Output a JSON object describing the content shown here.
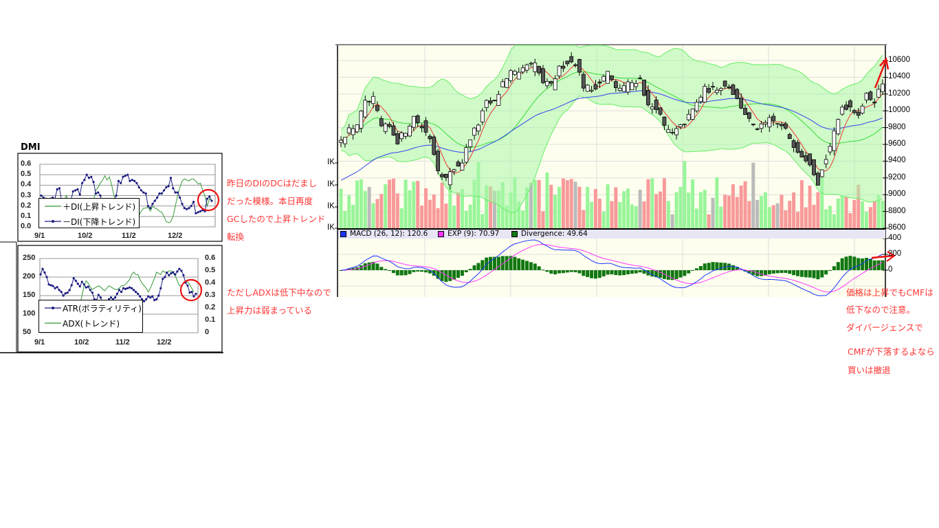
{
  "dmi_chart": {
    "title": "DMI",
    "y_ticks": [
      "0.6",
      "0.5",
      "0.4",
      "0.3",
      "0.2",
      "0.1",
      "0.0"
    ],
    "x_ticks": [
      "9/1",
      "10/2",
      "11/2",
      "12/2"
    ],
    "legend": [
      "＋DI(上昇トレンド)",
      "－DI(下降トレンド)"
    ],
    "series": [
      {
        "name": "＋DI(上昇トレンド)",
        "color": "#339933",
        "values": [
          0.3,
          0.28,
          0.25,
          0.2,
          0.18,
          0.15,
          0.12,
          0.1,
          0.15,
          0.2,
          0.25,
          0.3,
          0.25,
          0.2,
          0.15,
          0.12,
          0.1,
          0.08,
          0.1,
          0.12,
          0.15,
          0.18,
          0.2,
          0.25,
          0.35,
          0.38,
          0.42,
          0.45,
          0.49,
          0.45,
          0.48,
          0.4,
          0.3,
          0.25,
          0.2,
          0.15,
          0.12,
          0.1,
          0.12,
          0.15,
          0.14,
          0.13,
          0.12,
          0.11,
          0.15,
          0.18,
          0.18,
          0.19,
          0.15,
          0.2,
          0.18,
          0.17,
          0.15,
          0.14,
          0.1,
          0.05,
          0.04,
          0.05,
          0.1,
          0.2,
          0.3,
          0.38,
          0.44,
          0.46,
          0.45,
          0.44,
          0.46,
          0.46,
          0.44,
          0.41,
          0.42,
          0.35,
          0.3,
          0.2,
          0.27,
          0.25
        ]
      },
      {
        "name": "－DI(下降トレンド)",
        "color": "#1a1a80",
        "values": [
          0.3,
          0.28,
          0.27,
          0.26,
          0.27,
          0.28,
          0.27,
          0.36,
          0.37,
          0.25,
          0.22,
          0.2,
          0.22,
          0.25,
          0.34,
          0.35,
          0.36,
          0.31,
          0.42,
          0.45,
          0.5,
          0.47,
          0.48,
          0.43,
          0.32,
          0.33,
          0.3,
          0.22,
          0.18,
          0.2,
          0.22,
          0.2,
          0.25,
          0.3,
          0.44,
          0.42,
          0.48,
          0.49,
          0.5,
          0.44,
          0.45,
          0.44,
          0.42,
          0.38,
          0.35,
          0.33,
          0.32,
          0.2,
          0.18,
          0.22,
          0.25,
          0.28,
          0.32,
          0.32,
          0.35,
          0.38,
          0.39,
          0.47,
          0.37,
          0.33,
          0.33,
          0.28,
          0.22,
          0.18,
          0.17,
          0.18,
          0.2,
          0.24,
          0.13,
          0.14,
          0.15,
          0.16,
          0.15,
          0.27,
          0.29,
          0.25
        ]
      }
    ]
  },
  "atr_chart": {
    "y_ticks_left": [
      "250",
      "200",
      "150",
      "100",
      "50"
    ],
    "y_ticks_right": [
      "0.6",
      "0.5",
      "0.4",
      "0.3",
      "0.2",
      "0.1",
      "0"
    ],
    "x_ticks": [
      "9/1",
      "10/2",
      "11/2",
      "12/2"
    ],
    "legend": [
      "ATR(ボラティリティ)",
      "ADX(トレンド)"
    ],
    "atr": [
      207,
      222,
      212,
      200,
      180,
      178,
      176,
      170,
      173,
      165,
      160,
      150,
      156,
      158,
      165,
      178,
      197,
      190,
      182,
      175,
      187,
      180,
      172,
      174,
      165,
      158,
      140,
      138,
      152,
      145,
      130,
      128,
      132,
      140,
      145,
      140,
      145,
      155,
      165,
      160,
      170,
      168,
      170,
      172,
      170,
      165,
      160,
      155,
      148,
      140,
      135,
      140,
      148,
      145,
      148,
      138,
      140,
      150,
      170,
      195,
      200,
      212,
      205,
      210,
      213,
      207,
      215,
      222,
      217,
      205,
      185,
      177,
      158,
      160,
      148,
      155
    ],
    "adx": [
      null,
      null,
      null,
      null,
      null,
      null,
      null,
      null,
      null,
      null,
      null,
      null,
      null,
      null,
      null,
      null,
      null,
      null,
      null,
      0.22,
      0.3,
      0.38,
      0.42,
      0.4,
      0.37,
      0.35,
      0.36,
      0.37,
      0.38,
      0.37,
      0.35,
      0.34,
      0.36,
      0.38,
      0.37,
      0.36,
      0.35,
      0.35,
      0.36,
      0.38,
      0.38,
      0.39,
      0.41,
      0.43,
      0.47,
      0.49,
      0.47,
      0.47,
      0.43,
      0.4,
      0.38,
      0.36,
      0.33,
      0.36,
      0.4,
      0.44,
      0.49,
      0.48,
      0.47,
      0.5,
      0.49,
      0.48,
      0.5,
      0.5,
      0.48,
      0.46,
      0.42,
      0.38,
      0.38,
      0.4,
      0.42,
      0.41,
      0.39,
      0.36,
      0.33
    ]
  },
  "price_chart": {
    "y_ticks": [
      "10600",
      "10400",
      "10200",
      "10000",
      "9800",
      "9600",
      "9400",
      "9200",
      "9000",
      "8800",
      "8600"
    ],
    "volume_ticks": [
      "IK",
      "IK",
      "IK",
      "IK"
    ],
    "closes": [
      9682,
      9764,
      9846,
      10092,
      10133,
      9805,
      9805,
      9641,
      9764,
      9928,
      9805,
      9682,
      9313,
      9190,
      9313,
      9395,
      9682,
      9846,
      10092,
      10092,
      10338,
      10461,
      10420,
      10543,
      10543,
      10338,
      10297,
      10502,
      10584,
      10584,
      10297,
      10256,
      10338,
      10461,
      10256,
      10297,
      10338,
      10379,
      10051,
      10051,
      9805,
      9723,
      9805,
      9928,
      10092,
      10256,
      10256,
      10297,
      10297,
      10133,
      9969,
      9805,
      9805,
      9887,
      9846,
      9764,
      9600,
      9477,
      9395,
      9149,
      9436,
      9723,
      10051,
      10051,
      9969,
      10174,
      10133,
      10338
    ],
    "colors": {
      "band": "#66ee66",
      "band_fill": "#aaf5aa",
      "short_ma": "#ee3333",
      "long_ma": "#3344ee",
      "vol_up": "#99f599",
      "vol_down": "#f89a9a",
      "vol_flat": "#bbbbbb",
      "background": "#fefeee"
    }
  },
  "macd_panel": {
    "legend": [
      {
        "label": "MACD (26, 12): 120.6",
        "color": "#1a33ff"
      },
      {
        "label": "EXP (9): 70.97",
        "color": "#ff33ff"
      },
      {
        "label": "Divergence: 49.64",
        "color": "#117711"
      }
    ],
    "y_ticks": [
      "400",
      "200",
      "0"
    ]
  },
  "annotations": {
    "left": [
      "昨日のDIのDCはだまし",
      "だった模様。本日再度",
      "GCしたので上昇トレンド",
      "転換"
    ],
    "left2": [
      "ただしADXは低下中なので",
      "上昇力は弱まっている"
    ],
    "right": [
      "価格は上昇でもCMFは",
      "低下なので注意。",
      "ダイバージェンスで",
      "CMFが下落するよなら",
      "買いは撤退"
    ]
  }
}
